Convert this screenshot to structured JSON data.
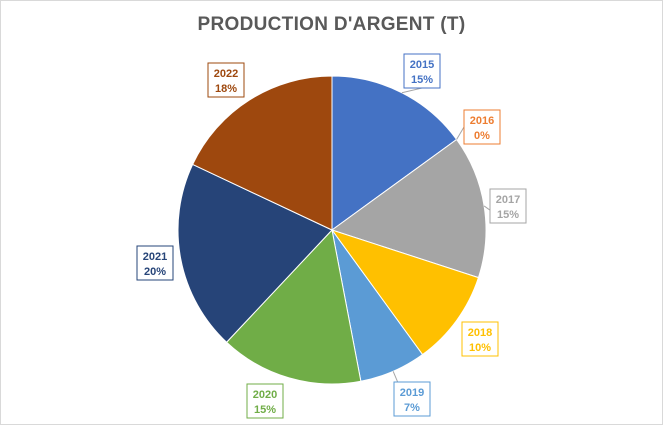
{
  "chart_data": {
    "type": "pie",
    "title": "PRODUCTION D'ARGENT (T)",
    "categories": [
      "2015",
      "2016",
      "2017",
      "2018",
      "2019",
      "2020",
      "2021",
      "2022"
    ],
    "values": [
      15,
      0,
      15,
      10,
      7,
      15,
      20,
      18
    ],
    "value_labels": [
      "15%",
      "0%",
      "15%",
      "10%",
      "7%",
      "15%",
      "20%",
      "18%"
    ],
    "colors": [
      "#4472C4",
      "#ED7D31",
      "#A5A5A5",
      "#FFC000",
      "#5B9BD5",
      "#70AD47",
      "#264478",
      "#9E480E"
    ],
    "legend": "none",
    "data_labels": "category-and-percent"
  }
}
